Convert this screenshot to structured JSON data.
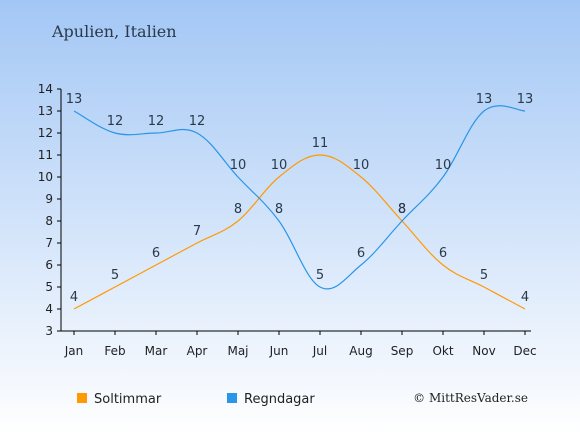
{
  "chart_data": {
    "type": "line",
    "title": "Apulien, Italien",
    "categories": [
      "Jan",
      "Feb",
      "Mar",
      "Apr",
      "Maj",
      "Jun",
      "Jul",
      "Aug",
      "Sep",
      "Okt",
      "Nov",
      "Dec"
    ],
    "ylim": [
      3,
      14
    ],
    "yticks": [
      3,
      4,
      5,
      6,
      7,
      8,
      9,
      10,
      11,
      12,
      13,
      14
    ],
    "grid": false,
    "legend_position": "bottom",
    "series": [
      {
        "name": "Soltimmar",
        "color": "#ff9900",
        "values": [
          4,
          5,
          6,
          7,
          8,
          10,
          11,
          10,
          8,
          6,
          5,
          4
        ]
      },
      {
        "name": "Regndagar",
        "color": "#2b95e8",
        "values": [
          13,
          12,
          12,
          12,
          10,
          8,
          5,
          6,
          8,
          10,
          13,
          13
        ]
      }
    ]
  },
  "credit": "© MittResVader.se",
  "colors": {
    "background_top": "#a3c7f5",
    "background_bottom": "#ffffff"
  }
}
